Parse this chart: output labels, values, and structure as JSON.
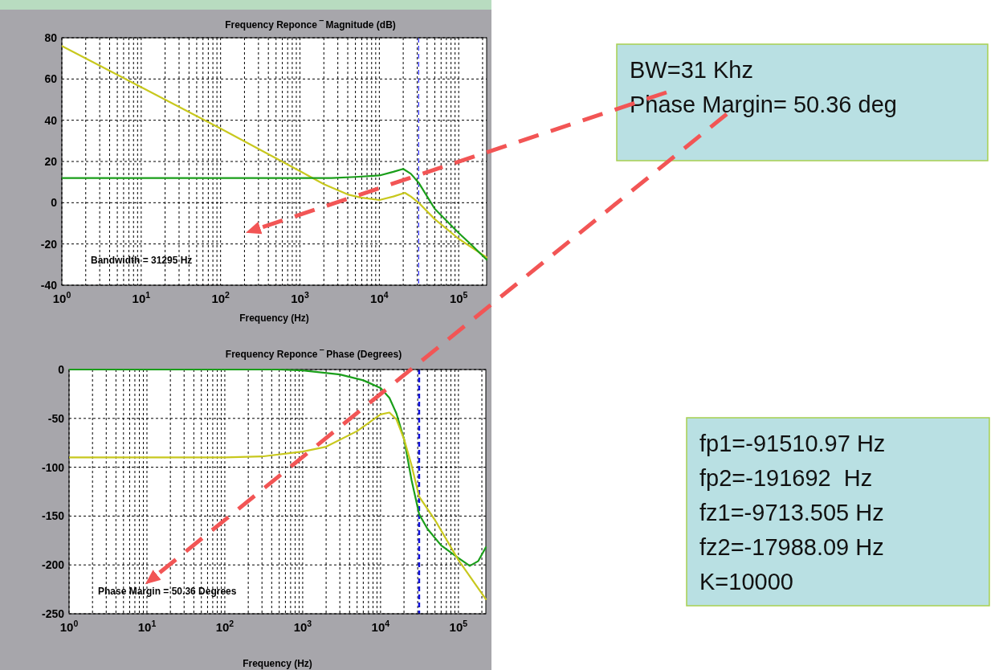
{
  "chart_data": [
    {
      "type": "line",
      "title": "Frequency Reponce ‾ Magnitude (dB)",
      "xlabel": "Frequency (Hz)",
      "log": "x",
      "grid": true,
      "line_style": "solid",
      "xlim": [
        1,
        225000
      ],
      "xticks": [
        {
          "value": 1,
          "label": "10$^{0}$"
        },
        {
          "value": 10,
          "label": "10$^{1}$"
        },
        {
          "value": 100,
          "label": "10$^{2}$"
        },
        {
          "value": 1000,
          "label": "10$^{3}$"
        },
        {
          "value": 10000,
          "label": "10$^{4}$"
        },
        {
          "value": 100000,
          "label": "10$^{5}$"
        }
      ],
      "ylim": [
        -40,
        80
      ],
      "yticks": [
        -40,
        -20,
        0,
        20,
        40,
        60,
        80
      ],
      "ref_lines": [
        {
          "axis": "x",
          "value": 31295,
          "color": "#2222ee",
          "line_style": "dashed"
        }
      ],
      "series": [
        {
          "color": "#c8c81e",
          "x": [
            1,
            10,
            100,
            1000,
            2000,
            4000,
            5800,
            10000,
            15000,
            21000,
            25000,
            31295,
            50000,
            100000,
            150000,
            225000
          ],
          "values": [
            76,
            56,
            36,
            15.3,
            9,
            4,
            2.5,
            1.3,
            3,
            4.8,
            3,
            0,
            -8,
            -17.5,
            -22,
            -26.5
          ]
        },
        {
          "color": "#1a9e1a",
          "x": [
            1,
            10,
            100,
            1000,
            2500,
            5000,
            10000,
            15000,
            20000,
            25000,
            31295,
            50000,
            100000,
            150000,
            225000
          ],
          "values": [
            12,
            12,
            12,
            12,
            12,
            12.5,
            13.2,
            15,
            16.4,
            14,
            9.7,
            -3,
            -14.7,
            -21,
            -27.6
          ]
        }
      ],
      "annotations": [
        "Bandwidth = 31295 Hz",
        "BW=31 Khz",
        "Phase Margin= 50.36 deg"
      ]
    },
    {
      "type": "line",
      "title": "Frequency Reponce ‾ Phase (Degrees)",
      "xlabel": "Frequency (Hz)",
      "log": "x",
      "grid": true,
      "line_style": "solid",
      "xlim": [
        1,
        225000
      ],
      "xticks": [
        {
          "value": 1,
          "label": "10$^{0}$"
        },
        {
          "value": 10,
          "label": "10$^{1}$"
        },
        {
          "value": 100,
          "label": "10$^{2}$"
        },
        {
          "value": 1000,
          "label": "10$^{3}$"
        },
        {
          "value": 10000,
          "label": "10$^{4}$"
        },
        {
          "value": 100000,
          "label": "10$^{5}$"
        }
      ],
      "ylim": [
        -250,
        0
      ],
      "yticks": [
        -250,
        -200,
        -150,
        -100,
        -50,
        0
      ],
      "ref_lines": [
        {
          "axis": "x",
          "value": 31295,
          "color": "#1010dd",
          "line_style": "dashed"
        }
      ],
      "series": [
        {
          "color": "#1a9e1a",
          "x": [
            1,
            100,
            500,
            1000,
            3000,
            6000,
            10000,
            13000,
            16000,
            20000,
            25000,
            31295,
            40000,
            60000,
            100000,
            140000,
            180000,
            225000
          ],
          "values": [
            0,
            0,
            0,
            -1,
            -5,
            -11,
            -19,
            -29,
            -45,
            -71,
            -113,
            -148,
            -163,
            -180,
            -193,
            -201,
            -196,
            -182
          ]
        },
        {
          "color": "#c8c81e",
          "x": [
            1,
            100,
            300,
            1000,
            2000,
            5000,
            10000,
            13000,
            16000,
            20000,
            25000,
            31295,
            50000,
            100000,
            225000
          ],
          "values": [
            -90,
            -90,
            -89,
            -84,
            -79,
            -63,
            -46,
            -44,
            -51,
            -71,
            -98,
            -130,
            -154,
            -195,
            -235
          ]
        }
      ],
      "annotations": [
        "Phase Margin = 50.36 Degrees",
        "fp1=-91510.97 Hz",
        "fp2=-191692  Hz",
        "fz1=-9713.505 Hz",
        "fz2=-17988.09 Hz",
        "K=10000"
      ]
    }
  ]
}
